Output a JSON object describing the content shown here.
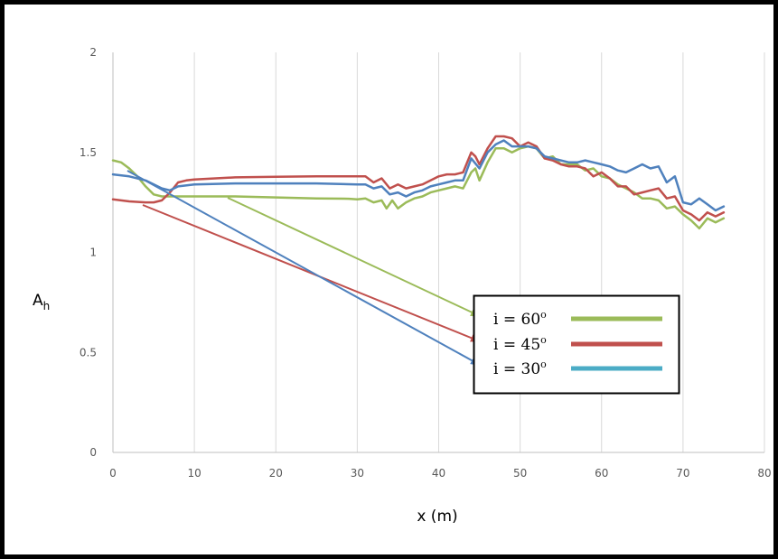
{
  "chart_data": {
    "type": "line",
    "xlabel": "x (m)",
    "ylabel": {
      "main": "A",
      "sub": "h"
    },
    "xlim": [
      0,
      80
    ],
    "ylim": [
      0,
      2
    ],
    "x_ticks": [
      0,
      10,
      20,
      30,
      40,
      50,
      60,
      70,
      80
    ],
    "y_ticks": [
      0,
      0.5,
      1,
      1.5,
      2
    ],
    "y_tick_labels": [
      "0",
      "0.5",
      "1",
      "1.5",
      "2"
    ],
    "grid": "vertical",
    "legend_position": "center-right",
    "series": [
      {
        "name": "60",
        "label_prefix": "i = ",
        "label_suffix": "o",
        "line_color": "#9bbb59",
        "legend_color": "#9bbb59",
        "points": [
          [
            0,
            1.46
          ],
          [
            1,
            1.45
          ],
          [
            2,
            1.42
          ],
          [
            3,
            1.38
          ],
          [
            4,
            1.33
          ],
          [
            5,
            1.29
          ],
          [
            6,
            1.28
          ],
          [
            8,
            1.28
          ],
          [
            10,
            1.28
          ],
          [
            15,
            1.28
          ],
          [
            20,
            1.275
          ],
          [
            25,
            1.27
          ],
          [
            29,
            1.268
          ],
          [
            30,
            1.265
          ],
          [
            31,
            1.27
          ],
          [
            32,
            1.25
          ],
          [
            33,
            1.26
          ],
          [
            33.6,
            1.22
          ],
          [
            34.3,
            1.26
          ],
          [
            35,
            1.22
          ],
          [
            36,
            1.25
          ],
          [
            37,
            1.27
          ],
          [
            38,
            1.28
          ],
          [
            39,
            1.3
          ],
          [
            40,
            1.31
          ],
          [
            41,
            1.32
          ],
          [
            42,
            1.33
          ],
          [
            43,
            1.32
          ],
          [
            44,
            1.4
          ],
          [
            44.5,
            1.42
          ],
          [
            45,
            1.36
          ],
          [
            46,
            1.45
          ],
          [
            47,
            1.52
          ],
          [
            48,
            1.52
          ],
          [
            49,
            1.5
          ],
          [
            50,
            1.52
          ],
          [
            51,
            1.53
          ],
          [
            52,
            1.52
          ],
          [
            53,
            1.47
          ],
          [
            54,
            1.48
          ],
          [
            55,
            1.44
          ],
          [
            56,
            1.44
          ],
          [
            57,
            1.44
          ],
          [
            58,
            1.41
          ],
          [
            59,
            1.42
          ],
          [
            60,
            1.38
          ],
          [
            61,
            1.37
          ],
          [
            62,
            1.34
          ],
          [
            63,
            1.32
          ],
          [
            64,
            1.3
          ],
          [
            65,
            1.27
          ],
          [
            66,
            1.27
          ],
          [
            67,
            1.26
          ],
          [
            68,
            1.22
          ],
          [
            69,
            1.23
          ],
          [
            70,
            1.19
          ],
          [
            71,
            1.16
          ],
          [
            72,
            1.12
          ],
          [
            73,
            1.17
          ],
          [
            74,
            1.15
          ],
          [
            75,
            1.17
          ]
        ]
      },
      {
        "name": "45",
        "label_prefix": "i = ",
        "label_suffix": "o",
        "line_color": "#c0504d",
        "legend_color": "#c0504d",
        "points": [
          [
            0,
            1.265
          ],
          [
            2,
            1.255
          ],
          [
            4,
            1.25
          ],
          [
            5,
            1.25
          ],
          [
            6,
            1.26
          ],
          [
            7,
            1.3
          ],
          [
            8,
            1.35
          ],
          [
            9,
            1.36
          ],
          [
            10,
            1.365
          ],
          [
            15,
            1.375
          ],
          [
            20,
            1.378
          ],
          [
            25,
            1.38
          ],
          [
            30,
            1.38
          ],
          [
            31,
            1.38
          ],
          [
            32,
            1.35
          ],
          [
            33,
            1.37
          ],
          [
            34,
            1.32
          ],
          [
            35,
            1.34
          ],
          [
            36,
            1.32
          ],
          [
            37,
            1.33
          ],
          [
            38,
            1.34
          ],
          [
            39,
            1.36
          ],
          [
            40,
            1.38
          ],
          [
            41,
            1.39
          ],
          [
            42,
            1.39
          ],
          [
            43,
            1.4
          ],
          [
            44,
            1.5
          ],
          [
            44.5,
            1.48
          ],
          [
            45,
            1.44
          ],
          [
            46,
            1.52
          ],
          [
            47,
            1.58
          ],
          [
            48,
            1.58
          ],
          [
            49,
            1.57
          ],
          [
            50,
            1.53
          ],
          [
            51,
            1.55
          ],
          [
            52,
            1.53
          ],
          [
            53,
            1.47
          ],
          [
            54,
            1.46
          ],
          [
            55,
            1.44
          ],
          [
            56,
            1.43
          ],
          [
            57,
            1.43
          ],
          [
            58,
            1.42
          ],
          [
            59,
            1.38
          ],
          [
            60,
            1.4
          ],
          [
            61,
            1.37
          ],
          [
            62,
            1.33
          ],
          [
            63,
            1.33
          ],
          [
            64,
            1.29
          ],
          [
            65,
            1.3
          ],
          [
            66,
            1.31
          ],
          [
            67,
            1.32
          ],
          [
            68,
            1.27
          ],
          [
            69,
            1.28
          ],
          [
            70,
            1.21
          ],
          [
            71,
            1.19
          ],
          [
            72,
            1.16
          ],
          [
            73,
            1.2
          ],
          [
            74,
            1.18
          ],
          [
            75,
            1.2
          ]
        ]
      },
      {
        "name": "30",
        "label_prefix": "i = ",
        "label_suffix": "o",
        "line_color": "#4f81bd",
        "legend_color": "#4bacc6",
        "points": [
          [
            0,
            1.39
          ],
          [
            2,
            1.38
          ],
          [
            4,
            1.36
          ],
          [
            6,
            1.32
          ],
          [
            7,
            1.31
          ],
          [
            8,
            1.33
          ],
          [
            10,
            1.34
          ],
          [
            15,
            1.345
          ],
          [
            20,
            1.345
          ],
          [
            25,
            1.345
          ],
          [
            30,
            1.34
          ],
          [
            31,
            1.34
          ],
          [
            32,
            1.32
          ],
          [
            33,
            1.33
          ],
          [
            34,
            1.29
          ],
          [
            35,
            1.3
          ],
          [
            36,
            1.28
          ],
          [
            37,
            1.3
          ],
          [
            38,
            1.31
          ],
          [
            39,
            1.33
          ],
          [
            40,
            1.34
          ],
          [
            41,
            1.35
          ],
          [
            42,
            1.36
          ],
          [
            43,
            1.36
          ],
          [
            44,
            1.47
          ],
          [
            45,
            1.42
          ],
          [
            46,
            1.5
          ],
          [
            47,
            1.54
          ],
          [
            48,
            1.56
          ],
          [
            49,
            1.53
          ],
          [
            50,
            1.53
          ],
          [
            51,
            1.53
          ],
          [
            52,
            1.52
          ],
          [
            53,
            1.48
          ],
          [
            54,
            1.47
          ],
          [
            55,
            1.46
          ],
          [
            56,
            1.45
          ],
          [
            57,
            1.45
          ],
          [
            58,
            1.46
          ],
          [
            59,
            1.45
          ],
          [
            60,
            1.44
          ],
          [
            61,
            1.43
          ],
          [
            62,
            1.41
          ],
          [
            63,
            1.4
          ],
          [
            64,
            1.42
          ],
          [
            65,
            1.44
          ],
          [
            66,
            1.42
          ],
          [
            67,
            1.43
          ],
          [
            68,
            1.35
          ],
          [
            69,
            1.38
          ],
          [
            70,
            1.25
          ],
          [
            71,
            1.24
          ],
          [
            72,
            1.27
          ],
          [
            73,
            1.24
          ],
          [
            74,
            1.21
          ],
          [
            75,
            1.23
          ]
        ]
      }
    ]
  }
}
